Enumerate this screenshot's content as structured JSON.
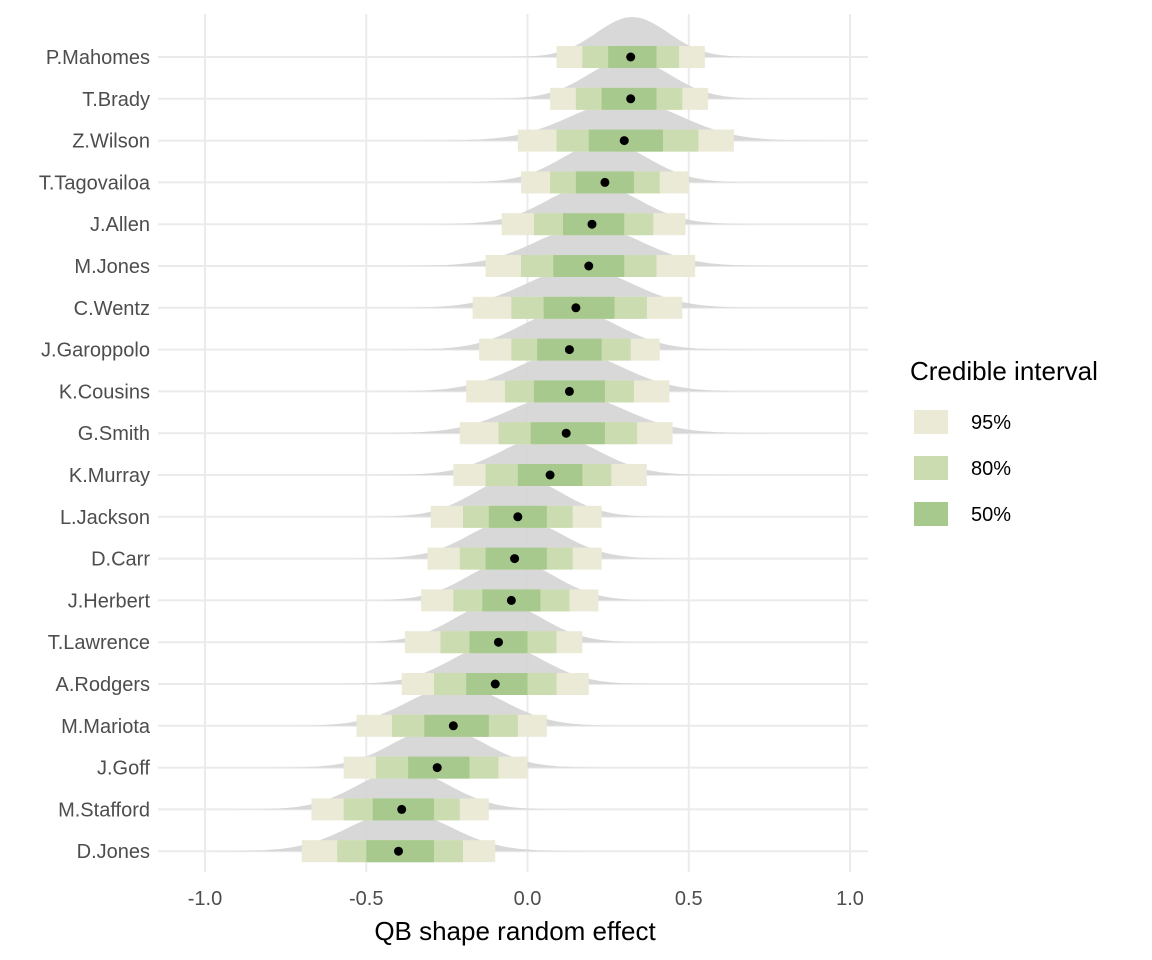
{
  "chart_data": {
    "type": "interval",
    "xlabel": "QB shape random effect",
    "xlim": [
      -1.1,
      1.05
    ],
    "x_ticks": [
      -1.0,
      -0.5,
      0.0,
      0.5,
      1.0
    ],
    "x_tick_labels": [
      "-1.0",
      "-0.5",
      "0.0",
      "0.5",
      "1.0"
    ],
    "legend": {
      "title": "Credible interval",
      "position": "right",
      "entries": [
        {
          "label": "95%",
          "color": "#ebead6"
        },
        {
          "label": "80%",
          "color": "#cbdcb0"
        },
        {
          "label": "50%",
          "color": "#a7c98e"
        }
      ]
    },
    "colors": {
      "density": "#d4d4d4",
      "ci95": "#ebead6",
      "ci80": "#cbdcb0",
      "ci50": "#a7c98e",
      "median": "#000000",
      "grid": "#ebebeb"
    },
    "players": [
      {
        "name": "P.Mahomes",
        "median": 0.32,
        "ci50": [
          0.25,
          0.4
        ],
        "ci80": [
          0.17,
          0.47
        ],
        "ci95": [
          0.09,
          0.55
        ]
      },
      {
        "name": "T.Brady",
        "median": 0.32,
        "ci50": [
          0.23,
          0.4
        ],
        "ci80": [
          0.15,
          0.48
        ],
        "ci95": [
          0.07,
          0.56
        ]
      },
      {
        "name": "Z.Wilson",
        "median": 0.3,
        "ci50": [
          0.19,
          0.42
        ],
        "ci80": [
          0.09,
          0.53
        ],
        "ci95": [
          -0.03,
          0.64
        ]
      },
      {
        "name": "T.Tagovailoa",
        "median": 0.24,
        "ci50": [
          0.15,
          0.33
        ],
        "ci80": [
          0.07,
          0.41
        ],
        "ci95": [
          -0.02,
          0.5
        ]
      },
      {
        "name": "J.Allen",
        "median": 0.2,
        "ci50": [
          0.11,
          0.3
        ],
        "ci80": [
          0.02,
          0.39
        ],
        "ci95": [
          -0.08,
          0.49
        ]
      },
      {
        "name": "M.Jones",
        "median": 0.19,
        "ci50": [
          0.08,
          0.3
        ],
        "ci80": [
          -0.02,
          0.4
        ],
        "ci95": [
          -0.13,
          0.52
        ]
      },
      {
        "name": "C.Wentz",
        "median": 0.15,
        "ci50": [
          0.05,
          0.27
        ],
        "ci80": [
          -0.05,
          0.37
        ],
        "ci95": [
          -0.17,
          0.48
        ]
      },
      {
        "name": "J.Garoppolo",
        "median": 0.13,
        "ci50": [
          0.03,
          0.23
        ],
        "ci80": [
          -0.05,
          0.32
        ],
        "ci95": [
          -0.15,
          0.41
        ]
      },
      {
        "name": "K.Cousins",
        "median": 0.13,
        "ci50": [
          0.02,
          0.24
        ],
        "ci80": [
          -0.07,
          0.33
        ],
        "ci95": [
          -0.19,
          0.44
        ]
      },
      {
        "name": "G.Smith",
        "median": 0.12,
        "ci50": [
          0.01,
          0.24
        ],
        "ci80": [
          -0.09,
          0.34
        ],
        "ci95": [
          -0.21,
          0.45
        ]
      },
      {
        "name": "K.Murray",
        "median": 0.07,
        "ci50": [
          -0.03,
          0.17
        ],
        "ci80": [
          -0.13,
          0.26
        ],
        "ci95": [
          -0.23,
          0.37
        ]
      },
      {
        "name": "L.Jackson",
        "median": -0.03,
        "ci50": [
          -0.12,
          0.06
        ],
        "ci80": [
          -0.2,
          0.14
        ],
        "ci95": [
          -0.3,
          0.23
        ]
      },
      {
        "name": "D.Carr",
        "median": -0.04,
        "ci50": [
          -0.13,
          0.06
        ],
        "ci80": [
          -0.21,
          0.14
        ],
        "ci95": [
          -0.31,
          0.23
        ]
      },
      {
        "name": "J.Herbert",
        "median": -0.05,
        "ci50": [
          -0.14,
          0.04
        ],
        "ci80": [
          -0.23,
          0.13
        ],
        "ci95": [
          -0.33,
          0.22
        ]
      },
      {
        "name": "T.Lawrence",
        "median": -0.09,
        "ci50": [
          -0.18,
          0.0
        ],
        "ci80": [
          -0.27,
          0.09
        ],
        "ci95": [
          -0.38,
          0.17
        ]
      },
      {
        "name": "A.Rodgers",
        "median": -0.1,
        "ci50": [
          -0.19,
          0.0
        ],
        "ci80": [
          -0.29,
          0.09
        ],
        "ci95": [
          -0.39,
          0.19
        ]
      },
      {
        "name": "M.Mariota",
        "median": -0.23,
        "ci50": [
          -0.32,
          -0.12
        ],
        "ci80": [
          -0.42,
          -0.03
        ],
        "ci95": [
          -0.53,
          0.06
        ]
      },
      {
        "name": "J.Goff",
        "median": -0.28,
        "ci50": [
          -0.37,
          -0.18
        ],
        "ci80": [
          -0.47,
          -0.09
        ],
        "ci95": [
          -0.57,
          0.0
        ]
      },
      {
        "name": "M.Stafford",
        "median": -0.39,
        "ci50": [
          -0.48,
          -0.29
        ],
        "ci80": [
          -0.57,
          -0.21
        ],
        "ci95": [
          -0.67,
          -0.12
        ]
      },
      {
        "name": "D.Jones",
        "median": -0.4,
        "ci50": [
          -0.5,
          -0.29
        ],
        "ci80": [
          -0.59,
          -0.2
        ],
        "ci95": [
          -0.7,
          -0.1
        ]
      }
    ]
  }
}
